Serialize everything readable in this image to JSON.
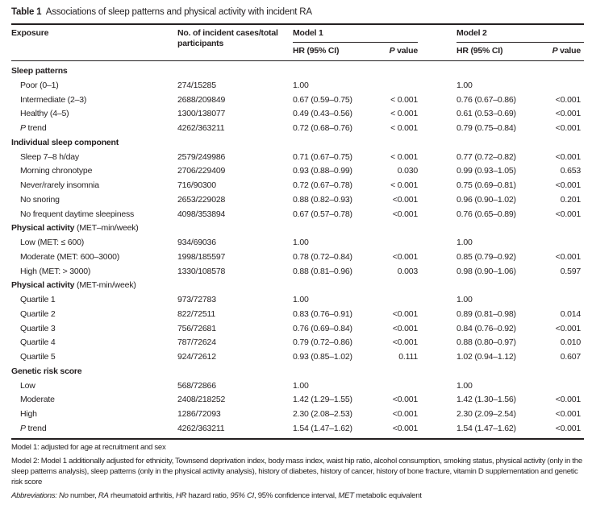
{
  "title": {
    "label": "Table 1",
    "text": "Associations of sleep patterns and physical activity with incident RA"
  },
  "header": {
    "exposure": "Exposure",
    "cases": "No. of incident cases/total participants",
    "model1": "Model 1",
    "model2": "Model 2",
    "hr": "HR (95% CI)",
    "p_italic": "P",
    "p_rest": " value"
  },
  "sections": [
    {
      "title": "Sleep patterns",
      "subtitle": "",
      "rows": [
        [
          "Poor (0–1)",
          "274/15285",
          "1.00",
          "",
          "1.00",
          ""
        ],
        [
          "Intermediate (2–3)",
          "2688/209849",
          "0.67 (0.59–0.75)",
          "< 0.001",
          "0.76 (0.67–0.86)",
          "<0.001"
        ],
        [
          "Healthy (4–5)",
          "1300/138077",
          "0.49 (0.43–0.56)",
          "< 0.001",
          "0.61 (0.53–0.69)",
          "<0.001"
        ],
        [
          "P trend",
          "4262/363211",
          "0.72 (0.68–0.76)",
          "< 0.001",
          "0.79 (0.75–0.84)",
          "<0.001"
        ]
      ]
    },
    {
      "title": "Individual sleep component",
      "subtitle": "",
      "rows": [
        [
          "Sleep 7–8 h/day",
          "2579/249986",
          "0.71 (0.67–0.75)",
          "< 0.001",
          "0.77 (0.72–0.82)",
          "<0.001"
        ],
        [
          "Morning chronotype",
          "2706/229409",
          "0.93 (0.88–0.99)",
          "0.030",
          "0.99 (0.93–1.05)",
          "0.653"
        ],
        [
          "Never/rarely insomnia",
          "716/90300",
          "0.72 (0.67–0.78)",
          "< 0.001",
          "0.75 (0.69–0.81)",
          "<0.001"
        ],
        [
          "No snoring",
          "2653/229028",
          "0.88 (0.82–0.93)",
          "<0.001",
          "0.96 (0.90–1.02)",
          "0.201"
        ],
        [
          "No frequent daytime sleepiness",
          "4098/353894",
          "0.67 (0.57–0.78)",
          "<0.001",
          "0.76 (0.65–0.89)",
          "<0.001"
        ]
      ]
    },
    {
      "title": "Physical activity",
      "subtitle": " (MET–min/week)",
      "rows": [
        [
          "Low (MET: ≤ 600)",
          "934/69036",
          "1.00",
          "",
          "1.00",
          ""
        ],
        [
          "Moderate (MET: 600–3000)",
          "1998/185597",
          "0.78 (0.72–0.84)",
          "<0.001",
          "0.85 (0.79–0.92)",
          "<0.001"
        ],
        [
          "High (MET: > 3000)",
          "1330/108578",
          "0.88 (0.81–0.96)",
          "0.003",
          "0.98 (0.90–1.06)",
          "0.597"
        ]
      ]
    },
    {
      "title": "Physical activity",
      "subtitle": " (MET-min/week)",
      "rows": [
        [
          "Quartile 1",
          "973/72783",
          "1.00",
          "",
          "1.00",
          ""
        ],
        [
          "Quartile 2",
          "822/72511",
          "0.83 (0.76–0.91)",
          "<0.001",
          "0.89 (0.81–0.98)",
          "0.014"
        ],
        [
          "Quartile 3",
          "756/72681",
          "0.76 (0.69–0.84)",
          "<0.001",
          "0.84 (0.76–0.92)",
          "<0.001"
        ],
        [
          "Quartile 4",
          "787/72624",
          "0.79 (0.72–0.86)",
          "<0.001",
          "0.88 (0.80–0.97)",
          "0.010"
        ],
        [
          "Quartile 5",
          "924/72612",
          "0.93 (0.85–1.02)",
          "0.111",
          "1.02 (0.94–1.12)",
          "0.607"
        ]
      ]
    },
    {
      "title": "Genetic risk score",
      "subtitle": "",
      "rows": [
        [
          "Low",
          "568/72866",
          "1.00",
          "",
          "1.00",
          ""
        ],
        [
          "Moderate",
          "2408/218252",
          "1.42 (1.29–1.55)",
          "<0.001",
          "1.42 (1.30–1.56)",
          "<0.001"
        ],
        [
          "High",
          "1286/72093",
          "2.30 (2.08–2.53)",
          "<0.001",
          "2.30 (2.09–2.54)",
          "<0.001"
        ],
        [
          "P trend",
          "4262/363211",
          "1.54 (1.47–1.62)",
          "<0.001",
          "1.54 (1.47–1.62)",
          "<0.001"
        ]
      ]
    }
  ],
  "footnotes": {
    "model1": "Model 1: adjusted for age at recruitment and sex",
    "model2": "Model 2: Model 1 additionally adjusted for ethnicity, Townsend deprivation index, body mass index, waist hip ratio, alcohol consumption, smoking status, physical activity (only in the sleep patterns analysis), sleep patterns (only in the physical activity analysis), history of diabetes, history of cancer, history of bone fracture, vitamin D supplementation and genetic risk score",
    "abbreviations": [
      {
        "term": "Abbreviations: No",
        "def": " number, "
      },
      {
        "term": "RA",
        "def": " rheumatoid arthritis, "
      },
      {
        "term": "HR",
        "def": " hazard ratio, "
      },
      {
        "term": "95% CI",
        "def": ", 95% confidence interval, "
      },
      {
        "term": "MET",
        "def": " metabolic equivalent"
      }
    ]
  }
}
